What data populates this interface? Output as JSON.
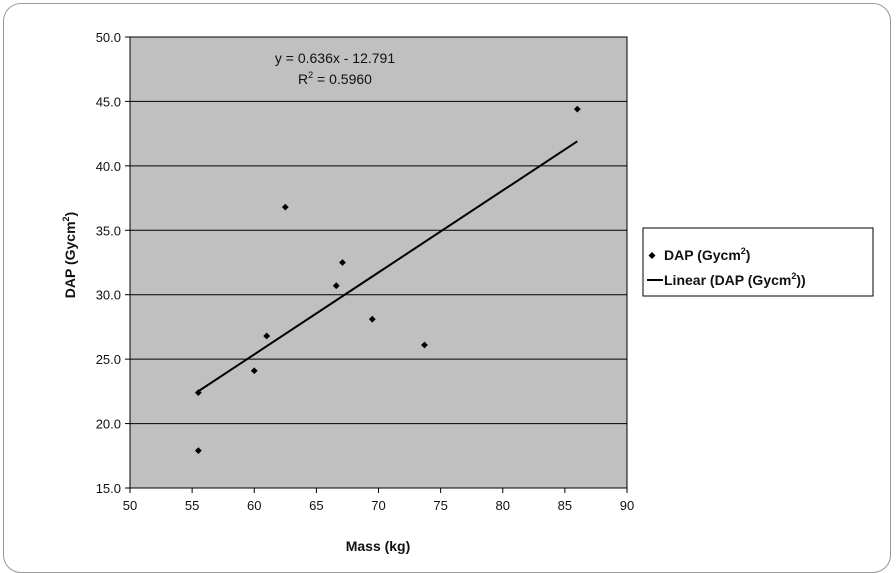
{
  "chart_data": {
    "type": "scatter",
    "title": "",
    "xlabel": "Mass (kg)",
    "ylabel_main": "DAP (Gycm",
    "ylabel_sup": "2",
    "ylabel_tail": ")",
    "xlim": [
      50,
      90
    ],
    "ylim": [
      15,
      50
    ],
    "x_ticks": [
      50,
      55,
      60,
      65,
      70,
      75,
      80,
      85,
      90
    ],
    "y_ticks": [
      "15.0",
      "20.0",
      "25.0",
      "30.0",
      "35.0",
      "40.0",
      "45.0",
      "50.0"
    ],
    "grid": true,
    "plot_background": "#c0c0c0",
    "series": [
      {
        "name": "DAP (Gycm²)",
        "kind": "scatter",
        "color": "#000000",
        "points": [
          {
            "x": 55.5,
            "y": 17.9
          },
          {
            "x": 55.5,
            "y": 22.4
          },
          {
            "x": 60.0,
            "y": 24.1
          },
          {
            "x": 61.0,
            "y": 26.8
          },
          {
            "x": 62.5,
            "y": 36.8
          },
          {
            "x": 66.6,
            "y": 30.7
          },
          {
            "x": 67.1,
            "y": 32.5
          },
          {
            "x": 69.5,
            "y": 28.1
          },
          {
            "x": 73.7,
            "y": 26.1
          },
          {
            "x": 86.0,
            "y": 44.4
          }
        ]
      },
      {
        "name": "Linear (DAP (Gycm²))",
        "kind": "trendline",
        "color": "#000000",
        "slope": 0.636,
        "intercept": -12.791,
        "x_range": [
          55.5,
          86.0
        ]
      }
    ],
    "legend": {
      "position": "right",
      "entries": [
        {
          "main": "DAP (Gycm",
          "sup": "2",
          "tail": ")"
        },
        {
          "main": "Linear (DAP (Gycm",
          "sup": "2",
          "tail": "))"
        }
      ]
    },
    "annotations": {
      "equation": "y = 0.636x - 12.791",
      "r2_prefix": "R",
      "r2_sup": "2",
      "r2_value": " = 0.5960"
    }
  }
}
